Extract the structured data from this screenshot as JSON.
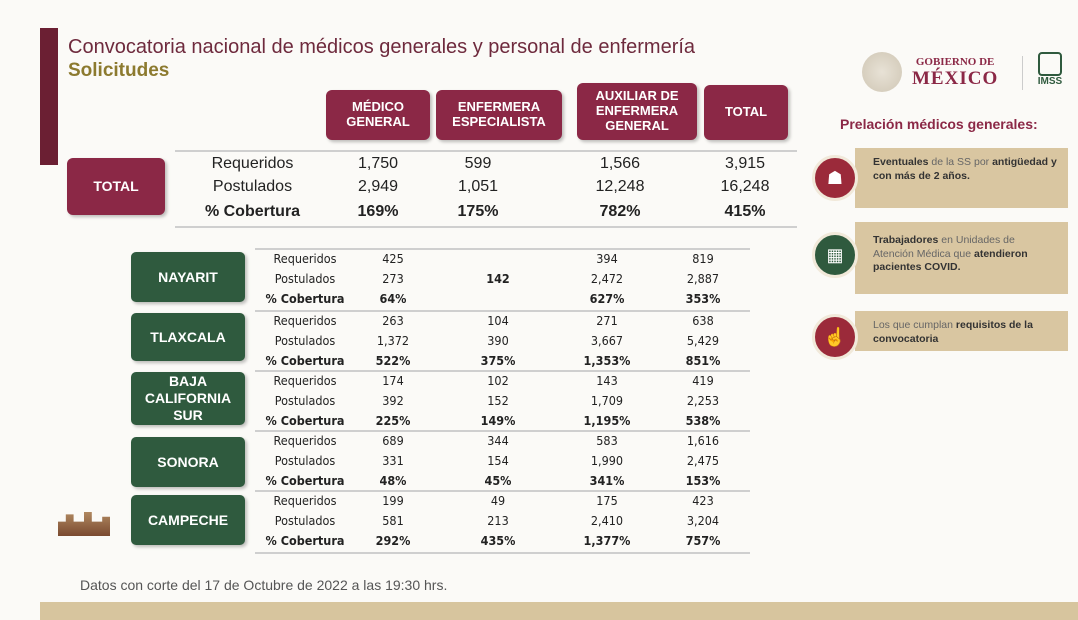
{
  "header": {
    "title": "Convocatoria nacional de médicos generales y personal de enfermería",
    "subtitle": "Solicitudes"
  },
  "logos": {
    "gobierno_line1": "GOBIERNO DE",
    "gobierno_line2": "MÉXICO",
    "imss": "IMSS"
  },
  "columns": [
    "MÉDICO GENERAL",
    "ENFERMERA ESPECIALISTA",
    "AUXILIAR DE ENFERMERA GENERAL",
    "TOTAL"
  ],
  "total": {
    "label": "TOTAL",
    "rows": [
      {
        "label": "Requeridos",
        "values": [
          "1,750",
          "599",
          "1,566",
          "3,915"
        ]
      },
      {
        "label": "Postulados",
        "values": [
          "2,949",
          "1,051",
          "12,248",
          "16,248"
        ]
      },
      {
        "label": "% Cobertura",
        "values": [
          "169%",
          "175%",
          "782%",
          "415%"
        ]
      }
    ]
  },
  "states": [
    {
      "name": "NAYARIT",
      "rows": [
        {
          "label": "Requeridos",
          "values": [
            "425",
            "",
            "394",
            "819"
          ]
        },
        {
          "label": "Postulados",
          "values": [
            "273",
            "142",
            "2,472",
            "2,887"
          ]
        },
        {
          "label": "% Cobertura",
          "values": [
            "64%",
            "",
            "627%",
            "353%"
          ]
        }
      ]
    },
    {
      "name": "TLAXCALA",
      "rows": [
        {
          "label": "Requeridos",
          "values": [
            "263",
            "104",
            "271",
            "638"
          ]
        },
        {
          "label": "Postulados",
          "values": [
            "1,372",
            "390",
            "3,667",
            "5,429"
          ]
        },
        {
          "label": "% Cobertura",
          "values": [
            "522%",
            "375%",
            "1,353%",
            "851%"
          ]
        }
      ]
    },
    {
      "name": "BAJA CALIFORNIA SUR",
      "rows": [
        {
          "label": "Requeridos",
          "values": [
            "174",
            "102",
            "143",
            "419"
          ]
        },
        {
          "label": "Postulados",
          "values": [
            "392",
            "152",
            "1,709",
            "2,253"
          ]
        },
        {
          "label": "% Cobertura",
          "values": [
            "225%",
            "149%",
            "1,195%",
            "538%"
          ]
        }
      ]
    },
    {
      "name": "SONORA",
      "rows": [
        {
          "label": "Requeridos",
          "values": [
            "689",
            "344",
            "583",
            "1,616"
          ]
        },
        {
          "label": "Postulados",
          "values": [
            "331",
            "154",
            "1,990",
            "2,475"
          ]
        },
        {
          "label": "% Cobertura",
          "values": [
            "48%",
            "45%",
            "341%",
            "153%"
          ]
        }
      ]
    },
    {
      "name": "CAMPECHE",
      "rows": [
        {
          "label": "Requeridos",
          "values": [
            "199",
            "49",
            "175",
            "423"
          ]
        },
        {
          "label": "Postulados",
          "values": [
            "581",
            "213",
            "2,410",
            "3,204"
          ]
        },
        {
          "label": "% Cobertura",
          "values": [
            "292%",
            "435%",
            "1,377%",
            "757%"
          ]
        }
      ]
    }
  ],
  "prelacion": {
    "title": "Prelación médicos generales:",
    "items": [
      {
        "icon": "people-group-icon",
        "color": "#9b2a3a",
        "bold1": "Eventuales",
        "text1": " de la SS por ",
        "bold2": "antigüedad y con  más de 2 años."
      },
      {
        "icon": "hospital-icon",
        "color": "#2f5a3e",
        "bold1": "Trabajadores",
        "text1": " en Unidades de Atención Médica que ",
        "bold2": "atendieron pacientes COVID."
      },
      {
        "icon": "hand-requirements-icon",
        "color": "#9b2a3a",
        "bold1": "",
        "text1": "Los que cumplan ",
        "bold2": "requisitos de la convocatoria"
      }
    ]
  },
  "footer": "Datos con corte del 17 de Octubre de 2022 a las 19:30 hrs.",
  "colors": {
    "maroon": "#8b2846",
    "green": "#2f5a3e",
    "gold": "#d7c59e"
  }
}
